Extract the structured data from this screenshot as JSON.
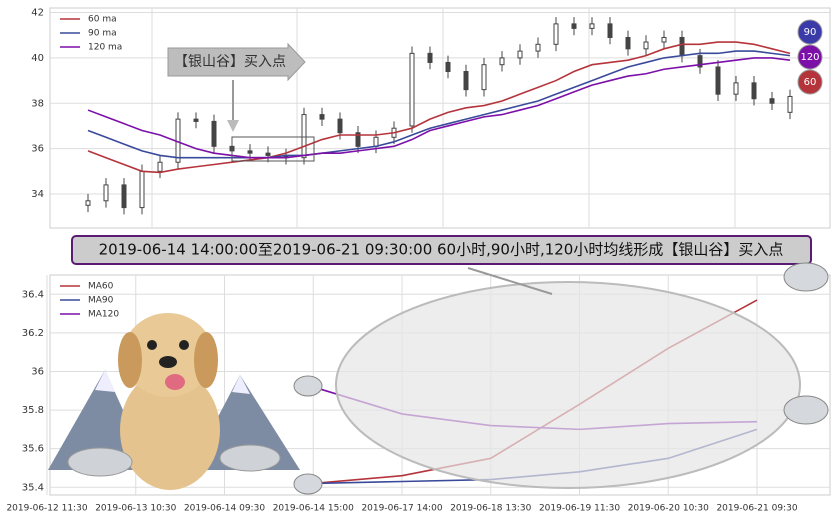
{
  "chart_data": [
    {
      "type": "candlestick",
      "open": [
        33.5,
        33.7,
        34.4,
        33.4,
        35.0,
        35.4,
        37.3,
        37.2,
        36.1,
        35.9,
        35.8,
        35.7,
        35.6,
        37.5,
        37.3,
        36.7,
        36.1,
        36.5,
        37.0,
        40.2,
        39.8,
        39.4,
        38.6,
        39.7,
        40.0,
        40.3,
        40.6,
        41.5,
        41.3,
        41.5,
        40.9,
        40.4,
        40.7,
        40.9,
        40.1,
        39.6,
        38.4,
        38.9,
        38.2,
        37.6
      ],
      "high": [
        34.0,
        34.7,
        34.7,
        35.3,
        35.7,
        37.6,
        37.6,
        37.5,
        36.4,
        36.2,
        36.1,
        36.0,
        37.8,
        37.8,
        37.6,
        37.0,
        36.8,
        37.2,
        40.5,
        40.5,
        40.1,
        39.7,
        40.0,
        40.3,
        40.6,
        40.9,
        41.8,
        41.8,
        41.8,
        41.8,
        41.2,
        41.0,
        41.2,
        41.2,
        40.4,
        39.9,
        39.2,
        39.2,
        38.5,
        38.6
      ],
      "low": [
        33.2,
        33.4,
        33.1,
        33.1,
        34.7,
        35.1,
        36.9,
        35.8,
        35.6,
        35.5,
        35.4,
        35.3,
        35.3,
        37.0,
        36.4,
        35.8,
        35.8,
        36.2,
        36.7,
        39.5,
        39.1,
        38.3,
        38.3,
        39.4,
        39.7,
        40.0,
        40.3,
        41.0,
        41.0,
        40.6,
        40.1,
        40.1,
        40.4,
        39.8,
        39.3,
        38.1,
        38.1,
        37.9,
        37.7,
        37.3
      ],
      "close": [
        33.7,
        34.4,
        33.4,
        35.0,
        35.4,
        37.3,
        37.2,
        36.1,
        35.9,
        35.8,
        35.7,
        35.6,
        37.5,
        37.3,
        36.7,
        36.1,
        36.5,
        36.9,
        40.2,
        39.8,
        39.4,
        38.6,
        39.7,
        40.0,
        40.3,
        40.6,
        41.5,
        41.3,
        41.5,
        40.9,
        40.4,
        40.7,
        40.9,
        40.1,
        39.6,
        38.4,
        38.9,
        38.2,
        38.0,
        38.3
      ],
      "series": [
        {
          "name": "60 ma",
          "color": "#b5343c",
          "values": [
            35.9,
            35.6,
            35.3,
            35.0,
            34.95,
            35.1,
            35.2,
            35.3,
            35.4,
            35.5,
            35.6,
            35.8,
            36.1,
            36.4,
            36.6,
            36.6,
            36.6,
            36.7,
            36.9,
            37.3,
            37.6,
            37.8,
            37.9,
            38.1,
            38.4,
            38.7,
            39.0,
            39.4,
            39.7,
            39.8,
            39.9,
            40.1,
            40.4,
            40.6,
            40.6,
            40.7,
            40.7,
            40.6,
            40.4,
            40.2
          ]
        },
        {
          "name": "90 ma",
          "color": "#3a4a9a",
          "values": [
            36.8,
            36.5,
            36.2,
            35.9,
            35.7,
            35.6,
            35.6,
            35.6,
            35.6,
            35.6,
            35.6,
            35.7,
            35.7,
            35.8,
            35.9,
            36.0,
            36.1,
            36.3,
            36.6,
            36.9,
            37.1,
            37.3,
            37.5,
            37.7,
            37.9,
            38.1,
            38.4,
            38.7,
            39.0,
            39.3,
            39.6,
            39.8,
            40.0,
            40.1,
            40.2,
            40.2,
            40.3,
            40.3,
            40.2,
            40.1
          ]
        },
        {
          "name": "120 ma",
          "color": "#7b0fa8",
          "values": [
            37.7,
            37.4,
            37.1,
            36.8,
            36.6,
            36.3,
            36.0,
            35.8,
            35.7,
            35.6,
            35.6,
            35.6,
            35.7,
            35.8,
            35.8,
            35.9,
            36.0,
            36.1,
            36.4,
            36.8,
            37.0,
            37.2,
            37.4,
            37.5,
            37.7,
            37.9,
            38.2,
            38.5,
            38.8,
            39.0,
            39.2,
            39.3,
            39.5,
            39.6,
            39.7,
            39.8,
            39.9,
            40.0,
            40.0,
            39.9
          ]
        }
      ],
      "badges": [
        {
          "text": "90",
          "color": "#3a3aa8"
        },
        {
          "text": "120",
          "color": "#7b0fa8"
        },
        {
          "text": "60",
          "color": "#b5343c"
        }
      ],
      "annotation": "【银山谷】买入点",
      "ylim": [
        32.5,
        42.2
      ],
      "yticks": [
        34,
        36,
        38,
        40,
        42
      ],
      "grid": true
    },
    {
      "type": "line",
      "annotation": "2019-06-14 14:00:00至2019-06-21 09:30:00 60小时,90小时,120小时均线形成【银山谷】买入点",
      "categories": [
        "2019-06-12 11:30",
        "2019-06-13 10:30",
        "2019-06-14 09:30",
        "2019-06-14 15:00",
        "2019-06-17 14:00",
        "2019-06-18 13:30",
        "2019-06-19 11:30",
        "2019-06-20 10:30",
        "2019-06-21 09:30"
      ],
      "series": [
        {
          "name": "MA60",
          "color": "#b5343c",
          "values": [
            null,
            null,
            null,
            35.42,
            35.46,
            35.55,
            35.83,
            36.12,
            36.37
          ]
        },
        {
          "name": "MA90",
          "color": "#3a4a9a",
          "values": [
            null,
            null,
            null,
            35.42,
            35.43,
            35.44,
            35.48,
            35.55,
            35.7
          ]
        },
        {
          "name": "MA120",
          "color": "#7b0fa8",
          "values": [
            null,
            null,
            null,
            35.92,
            35.78,
            35.72,
            35.7,
            35.73,
            35.74
          ]
        }
      ],
      "ylim": [
        35.36,
        36.5
      ],
      "yticks": [
        35.4,
        35.6,
        35.8,
        36.0,
        36.2,
        36.4
      ],
      "grid": true
    }
  ]
}
